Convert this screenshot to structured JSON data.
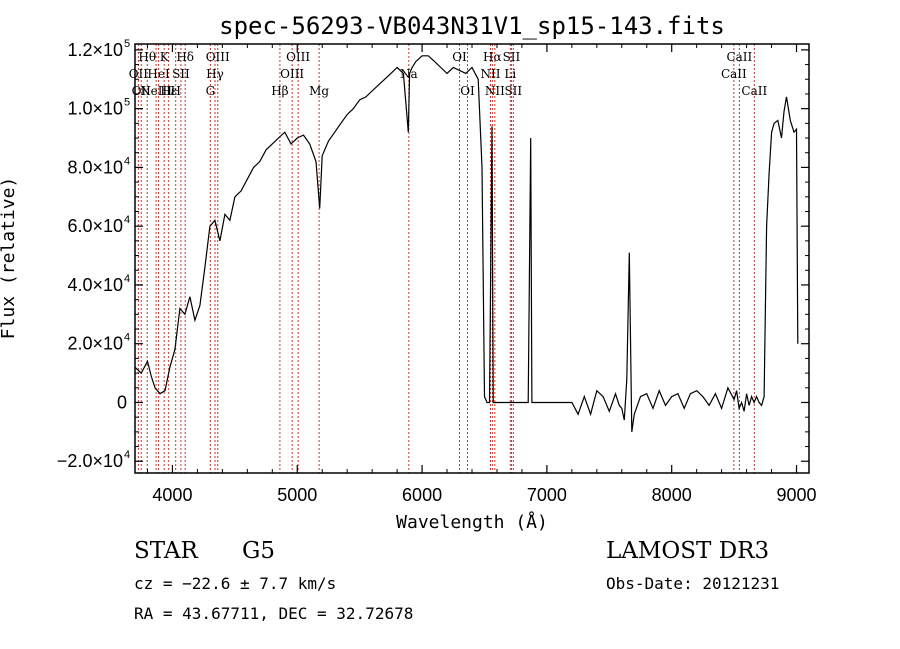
{
  "chart_data": {
    "type": "line",
    "title": "spec-56293-VB043N31V1_sp15-143.fits",
    "xlabel": "Wavelength (Å)",
    "ylabel": "Flux (relative)",
    "xlim": [
      3700,
      9100
    ],
    "ylim": [
      -24000,
      122000
    ],
    "x_ticks": [
      {
        "value": 4000,
        "label": "4000"
      },
      {
        "value": 5000,
        "label": "5000"
      },
      {
        "value": 6000,
        "label": "6000"
      },
      {
        "value": 7000,
        "label": "7000"
      },
      {
        "value": 8000,
        "label": "8000"
      },
      {
        "value": 9000,
        "label": "9000"
      }
    ],
    "y_ticks": [
      {
        "value": -20000,
        "mant": "−2.0×10",
        "exp": "4"
      },
      {
        "value": 0,
        "mant": "0",
        "exp": ""
      },
      {
        "value": 20000,
        "mant": "2.0×10",
        "exp": "4"
      },
      {
        "value": 40000,
        "mant": "4.0×10",
        "exp": "4"
      },
      {
        "value": 60000,
        "mant": "6.0×10",
        "exp": "4"
      },
      {
        "value": 80000,
        "mant": "8.0×10",
        "exp": "4"
      },
      {
        "value": 100000,
        "mant": "1.0×10",
        "exp": "5"
      },
      {
        "value": 120000,
        "mant": "1.2×10",
        "exp": "5"
      }
    ],
    "series": [
      {
        "name": "flux",
        "x": [
          3700,
          3750,
          3800,
          3830,
          3860,
          3900,
          3940,
          3980,
          4020,
          4060,
          4100,
          4140,
          4180,
          4220,
          4260,
          4300,
          4340,
          4380,
          4420,
          4460,
          4500,
          4550,
          4600,
          4650,
          4700,
          4750,
          4800,
          4850,
          4900,
          4950,
          5000,
          5050,
          5100,
          5150,
          5180,
          5200,
          5250,
          5300,
          5350,
          5400,
          5450,
          5500,
          5550,
          5600,
          5650,
          5700,
          5750,
          5800,
          5850,
          5890,
          5900,
          5920,
          5950,
          6000,
          6050,
          6100,
          6150,
          6200,
          6250,
          6300,
          6350,
          6400,
          6450,
          6480,
          6500,
          6520,
          6540,
          6560,
          6570,
          6580,
          6590,
          6600,
          6620,
          6650,
          6700,
          6750,
          6800,
          6850,
          6870,
          6880,
          6890,
          6900,
          7200,
          7250,
          7300,
          7350,
          7400,
          7450,
          7500,
          7550,
          7580,
          7600,
          7620,
          7640,
          7660,
          7680,
          7700,
          7750,
          7800,
          7850,
          7900,
          7950,
          8000,
          8050,
          8100,
          8150,
          8200,
          8250,
          8300,
          8350,
          8400,
          8450,
          8500,
          8520,
          8540,
          8560,
          8580,
          8600,
          8620,
          8640,
          8660,
          8680,
          8700,
          8720,
          8740,
          8760,
          8780,
          8800,
          8820,
          8850,
          8880,
          8900,
          8920,
          8950,
          8980,
          9000,
          9010
        ],
        "y": [
          12000,
          10000,
          14000,
          9000,
          5000,
          3000,
          4000,
          12000,
          18000,
          32000,
          30000,
          36000,
          28000,
          33000,
          46000,
          60000,
          62000,
          55000,
          64000,
          62000,
          70000,
          72000,
          76000,
          80000,
          82000,
          86000,
          88000,
          90000,
          92000,
          88000,
          90000,
          91000,
          88000,
          82000,
          66000,
          84000,
          89000,
          92000,
          95000,
          98000,
          100000,
          103000,
          104000,
          106000,
          108000,
          110000,
          112000,
          114000,
          112000,
          92000,
          112000,
          114000,
          116000,
          118000,
          118000,
          116000,
          114000,
          112000,
          114000,
          113000,
          112000,
          114000,
          110000,
          80000,
          2000,
          0,
          0,
          94000,
          0,
          0,
          0,
          0,
          0,
          0,
          0,
          0,
          0,
          0,
          90000,
          0,
          0,
          0,
          0,
          -4000,
          2000,
          -4000,
          4000,
          2000,
          -3000,
          3000,
          -1000,
          -2000,
          -6000,
          8000,
          51000,
          -10000,
          -4000,
          2000,
          3000,
          -2000,
          4000,
          -1000,
          2000,
          3000,
          -2000,
          3000,
          4000,
          2000,
          -1000,
          3000,
          -2000,
          5000,
          1000,
          4000,
          -2000,
          0,
          -3000,
          3000,
          -1000,
          2000,
          0,
          2000,
          0,
          -1000,
          2000,
          60000,
          78000,
          92000,
          95000,
          96000,
          90000,
          99000,
          104000,
          96000,
          92000,
          93000,
          20000
        ]
      }
    ],
    "emission_lines": [
      {
        "x": 3727,
        "label": "OII",
        "row": 2
      },
      {
        "x": 3750,
        "label": "OII",
        "row": 3
      },
      {
        "x": 3798,
        "label": "Hθ",
        "row": 1
      },
      {
        "x": 3869,
        "label": "NeIII",
        "row": 3
      },
      {
        "x": 3889,
        "label": "HeI",
        "row": 2
      },
      {
        "x": 3934,
        "label": "K",
        "row": 1
      },
      {
        "x": 3970,
        "label": "Hε",
        "row": 3
      },
      {
        "x": 4026,
        "label": "H",
        "row": 3
      },
      {
        "x": 4068,
        "label": "SII",
        "row": 2
      },
      {
        "x": 4102,
        "label": "Hδ",
        "row": 1
      },
      {
        "x": 4304,
        "label": "G",
        "row": 3
      },
      {
        "x": 4341,
        "label": "Hγ",
        "row": 2
      },
      {
        "x": 4363,
        "label": "OIII",
        "row": 1
      },
      {
        "x": 4861,
        "label": "Hβ",
        "row": 3
      },
      {
        "x": 4959,
        "label": "OIII",
        "row": 2
      },
      {
        "x": 5007,
        "label": "OIII",
        "row": 1
      },
      {
        "x": 5175,
        "label": "Mg",
        "row": 3
      },
      {
        "x": 5894,
        "label": "Na",
        "row": 2
      },
      {
        "x": 6300,
        "label": "OI",
        "row": 1
      },
      {
        "x": 6364,
        "label": "OI",
        "row": 3
      },
      {
        "x": 6548,
        "label": "NII",
        "row": 2
      },
      {
        "x": 6563,
        "label": "Hα",
        "row": 1
      },
      {
        "x": 6583,
        "label": "NII",
        "row": 3
      },
      {
        "x": 6707,
        "label": "Li",
        "row": 2
      },
      {
        "x": 6716,
        "label": "SII",
        "row": 1
      },
      {
        "x": 6731,
        "label": "SII",
        "row": 3
      },
      {
        "x": 8498,
        "label": "CaII",
        "row": 2
      },
      {
        "x": 8542,
        "label": "CaII",
        "row": 1
      },
      {
        "x": 8662,
        "label": "CaII",
        "row": 3
      }
    ]
  },
  "info": {
    "class": "STAR",
    "subclass": "G5",
    "survey": "LAMOST DR3",
    "cz": "cz = −22.6 ± 7.7 km/s",
    "obs_date": "Obs-Date: 20121231",
    "coords": "RA =  43.67711, DEC =  32.72678"
  },
  "colors": {
    "line_marker": "#c0392b",
    "spectrum": "#000000"
  }
}
